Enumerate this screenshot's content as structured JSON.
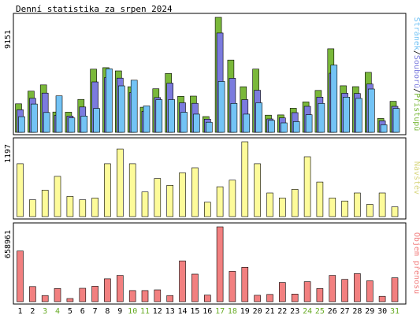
{
  "title": "Denní statistika za srpen 2024",
  "colors": {
    "background": "#ffffff",
    "panel_border": "#000000",
    "hits": "#7ab83a",
    "files": "#7b7bde",
    "pages": "#73c3f5",
    "visits": "#fdfb9a",
    "volume": "#f28080",
    "weekend_label": "#66aa22",
    "weekday_label": "#000000"
  },
  "chart_data": [
    {
      "type": "bar",
      "panel": "hits_files_pages",
      "ymax_label": "9151",
      "ylim": [
        0,
        9151
      ],
      "legend": {
        "hits": "Přístupů",
        "files": "Souborů",
        "pages": "Stránek",
        "sep1": "/",
        "sep2": "/"
      },
      "legend_colors": {
        "hits": "#7ab83a",
        "files": "#7b7bde",
        "pages": "#73c3f5"
      },
      "categories": [
        "1",
        "2",
        "3",
        "4",
        "5",
        "6",
        "7",
        "8",
        "9",
        "10",
        "11",
        "12",
        "13",
        "14",
        "15",
        "16",
        "17",
        "18",
        "19",
        "20",
        "21",
        "22",
        "23",
        "24",
        "25",
        "26",
        "27",
        "28",
        "29",
        "30",
        "31"
      ],
      "series": [
        {
          "name": "Přístupů",
          "values": [
            2267,
            3278,
            3771,
            1618,
            1606,
            2617,
            5027,
            5148,
            4889,
            3626,
            2002,
            3463,
            4681,
            2866,
            2884,
            1254,
            9151,
            5755,
            3626,
            5030,
            1366,
            1383,
            1917,
            2417,
            3332,
            6651,
            3706,
            3633,
            4779,
            1106,
            2469
          ]
        },
        {
          "name": "Souborů",
          "values": [
            1797,
            2710,
            3122,
            1348,
            1292,
            2017,
            4011,
            4348,
            4312,
            3156,
            1665,
            2766,
            3914,
            2350,
            2305,
            1047,
            7904,
            4300,
            2600,
            3350,
            1066,
            1145,
            1567,
            2067,
            2800,
            4700,
            3106,
            3089,
            3840,
            913,
            2067
          ]
        },
        {
          "name": "Stránek",
          "values": [
            1250,
            2250,
            1580,
            2900,
            1150,
            1300,
            1900,
            5050,
            3700,
            4150,
            2100,
            2600,
            2600,
            1600,
            1450,
            800,
            4050,
            2300,
            1450,
            2350,
            950,
            750,
            850,
            1400,
            2300,
            5350,
            2800,
            2700,
            3450,
            600,
            1900
          ]
        }
      ]
    },
    {
      "type": "bar",
      "panel": "visits",
      "ymax_label": "1197",
      "ylim": [
        0,
        1197
      ],
      "legend": "Návštěv",
      "categories": [
        "1",
        "2",
        "3",
        "4",
        "5",
        "6",
        "7",
        "8",
        "9",
        "10",
        "11",
        "12",
        "13",
        "14",
        "15",
        "16",
        "17",
        "18",
        "19",
        "20",
        "21",
        "22",
        "23",
        "24",
        "25",
        "26",
        "27",
        "28",
        "29",
        "30",
        "31"
      ],
      "series": [
        {
          "name": "Návštěv",
          "values": [
            846,
            270,
            423,
            644,
            322,
            270,
            297,
            846,
            1082,
            846,
            394,
            610,
            500,
            700,
            781,
            230,
            478,
            584,
            1197,
            846,
            378,
            297,
            436,
            958,
            553,
            297,
            249,
            378,
            195,
            378,
            156
          ]
        }
      ]
    },
    {
      "type": "bar",
      "panel": "volume",
      "ymax_label": "658961",
      "ylim": [
        0,
        658961
      ],
      "legend": "Objem přenosu",
      "categories": [
        "1",
        "2",
        "3",
        "4",
        "5",
        "6",
        "7",
        "8",
        "9",
        "10",
        "11",
        "12",
        "13",
        "14",
        "15",
        "16",
        "17",
        "18",
        "19",
        "20",
        "21",
        "22",
        "23",
        "24",
        "25",
        "26",
        "27",
        "28",
        "29",
        "30",
        "31"
      ],
      "series": [
        {
          "name": "Objem přenosu",
          "values": [
            446000,
            133000,
            54000,
            116000,
            28000,
            118000,
            136000,
            202000,
            232000,
            98000,
            98000,
            104000,
            54000,
            359000,
            243000,
            58000,
            658961,
            268000,
            303000,
            56000,
            64000,
            169000,
            67000,
            176000,
            116000,
            232000,
            196000,
            247000,
            184000,
            47000,
            210000
          ]
        }
      ]
    }
  ]
}
